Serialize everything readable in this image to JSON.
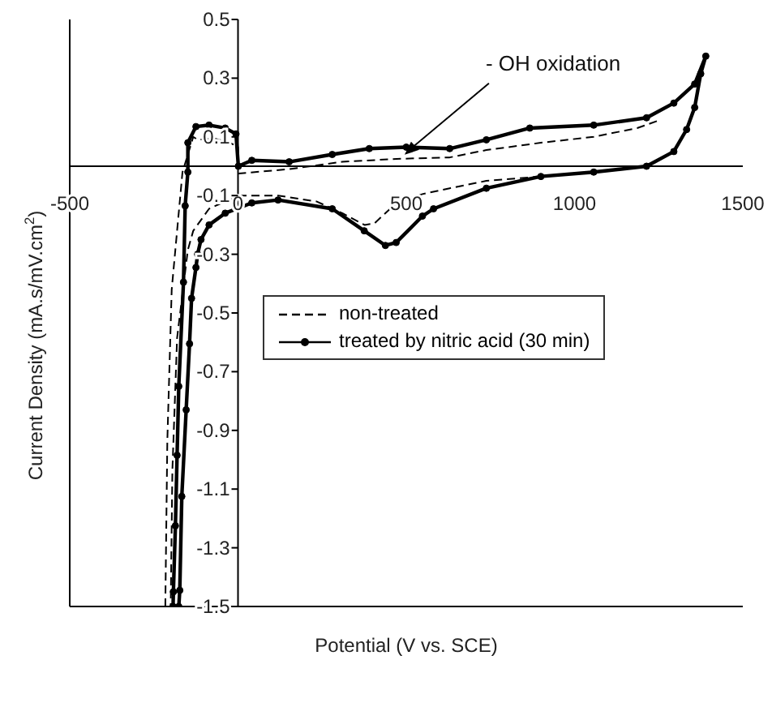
{
  "chart_data": {
    "type": "line",
    "xlabel": "Potential (V vs. SCE)",
    "ylabel": "Current Density (mA.s/mV.cm$^{2}$)",
    "xlim": [
      -500,
      1500
    ],
    "xticks": [
      -500,
      0,
      500,
      1000,
      1500
    ],
    "ylim": [
      -1.5,
      0.5
    ],
    "yticks": [
      -1.5,
      -1.3,
      -1.1,
      -0.9,
      -0.7,
      -0.5,
      -0.3,
      -0.1,
      0.1,
      0.3,
      0.5
    ],
    "grid": false,
    "legend": "center",
    "annotations": [
      {
        "text": "- OH oxidation",
        "x": 495,
        "y": 0.085
      }
    ],
    "series": [
      {
        "name": "non-treated",
        "color": "#000000",
        "line_style": "dashed",
        "marker": "none",
        "x": [
          -216,
          -210,
          -197,
          -165,
          -133,
          -119,
          -71,
          -24,
          0,
          2,
          152,
          310,
          471,
          629,
          738,
          900,
          1057,
          1186,
          1248
        ],
        "values": [
          -1.5,
          -0.935,
          -0.42,
          -0.02,
          0.1,
          0.09,
          0.095,
          0.08,
          0.065,
          -0.025,
          -0.01,
          0.015,
          0.025,
          0.03,
          0.055,
          0.08,
          0.1,
          0.13,
          0.155
        ]
      },
      {
        "color": "#000000",
        "line_style": "dashed",
        "marker": "none",
        "x": [
          900,
          738,
          629,
          548,
          471,
          405,
          376,
          310,
          233,
          119,
          10,
          -38,
          -86,
          -133,
          -149,
          -181,
          -195,
          -200
        ],
        "values": [
          -0.035,
          -0.05,
          -0.075,
          -0.095,
          -0.125,
          -0.195,
          -0.2,
          -0.16,
          -0.12,
          -0.1,
          -0.1,
          -0.12,
          -0.145,
          -0.22,
          -0.285,
          -0.585,
          -1.035,
          -1.5
        ]
      },
      {
        "name": "treated by nitric acid (30 min)",
        "color": "#000000",
        "line_style": "solid",
        "marker": "circle",
        "x": [
          -193,
          -192,
          -186,
          -181,
          -176,
          -162,
          -157,
          -149,
          -149,
          -125,
          -86,
          -38,
          -6,
          1,
          41,
          152,
          280,
          390,
          500,
          629,
          738,
          867,
          1057,
          1214,
          1295,
          1357,
          1390,
          1375,
          1357,
          1333,
          1295,
          1214,
          1057,
          900,
          738,
          581,
          548,
          470,
          438,
          375,
          280,
          119,
          41,
          -38,
          -86,
          -110,
          -120,
          -125,
          -138,
          -144,
          -154,
          -167,
          -173,
          -176
        ],
        "values": [
          -1.5,
          -1.45,
          -1.225,
          -0.985,
          -0.75,
          -0.395,
          -0.135,
          -0.02,
          0.08,
          0.135,
          0.14,
          0.13,
          0.11,
          0.0,
          0.02,
          0.015,
          0.04,
          0.06,
          0.065,
          0.06,
          0.09,
          0.13,
          0.14,
          0.165,
          0.215,
          0.28,
          0.375,
          0.315,
          0.2,
          0.125,
          0.05,
          0.0,
          -0.02,
          -0.035,
          -0.075,
          -0.145,
          -0.17,
          -0.26,
          -0.27,
          -0.22,
          -0.145,
          -0.115,
          -0.125,
          -0.16,
          -0.2,
          -0.25,
          -0.3,
          -0.345,
          -0.45,
          -0.605,
          -0.83,
          -1.125,
          -1.445,
          -1.5
        ]
      }
    ]
  }
}
